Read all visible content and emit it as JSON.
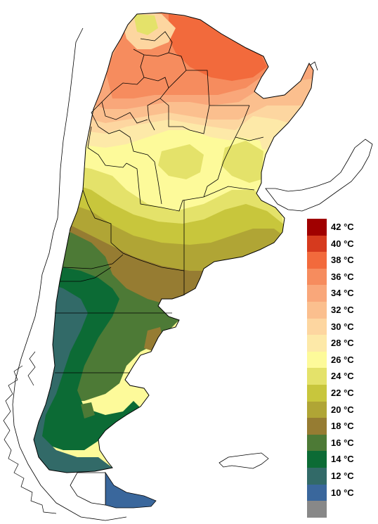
{
  "legend": {
    "items": [
      {
        "label": "42 °C",
        "color": "#a00000"
      },
      {
        "label": "40 °C",
        "color": "#d63a1e"
      },
      {
        "label": "38 °C",
        "color": "#f26a3c"
      },
      {
        "label": "36 °C",
        "color": "#f68c5e"
      },
      {
        "label": "34 °C",
        "color": "#f9a77a"
      },
      {
        "label": "32 °C",
        "color": "#fbbf8e"
      },
      {
        "label": "30 °C",
        "color": "#fdd6a0"
      },
      {
        "label": "28 °C",
        "color": "#fde9a8"
      },
      {
        "label": "26 °C",
        "color": "#fdfa9a"
      },
      {
        "label": "24 °C",
        "color": "#e4e26a"
      },
      {
        "label": "22 °C",
        "color": "#c8c63c"
      },
      {
        "label": "20 °C",
        "color": "#b0a535"
      },
      {
        "label": "18 °C",
        "color": "#967c32"
      },
      {
        "label": "16 °C",
        "color": "#4d7a36"
      },
      {
        "label": "14 °C",
        "color": "#0c6b35"
      },
      {
        "label": "12 °C",
        "color": "#326a68"
      },
      {
        "label": "10 °C",
        "color": "#3a679c"
      },
      {
        "label": "",
        "color": "#888888"
      }
    ]
  }
}
